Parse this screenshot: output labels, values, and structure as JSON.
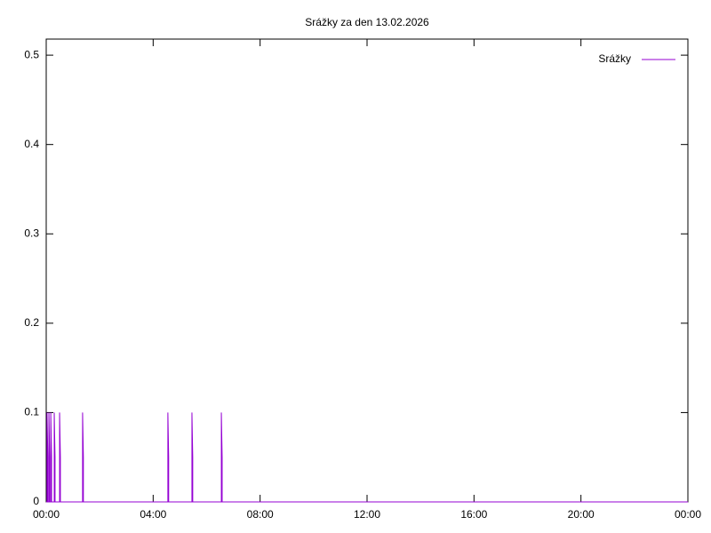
{
  "chart_data": {
    "type": "line",
    "title": "Srážky za den 13.02.2026",
    "x": [
      0,
      0.03,
      0.03,
      0.06,
      0.06,
      0.1,
      0.1,
      0.13,
      0.13,
      0.17,
      0.17,
      0.2,
      0.2,
      0.3,
      0.3,
      0.33,
      0.33,
      0.5,
      0.5,
      0.53,
      0.53,
      1.36,
      1.36,
      1.39,
      1.39,
      4.55,
      4.55,
      4.58,
      4.58,
      5.45,
      5.45,
      5.48,
      5.48,
      6.55,
      6.55,
      6.58,
      6.58,
      24
    ],
    "series": [
      {
        "name": "Srážky",
        "color": "#9400d3",
        "values": [
          0,
          0,
          0.1,
          0.05,
          0,
          0,
          0.1,
          0.05,
          0,
          0,
          0.1,
          0.05,
          0,
          0,
          0.1,
          0.05,
          0,
          0,
          0.1,
          0.05,
          0,
          0,
          0.1,
          0.05,
          0,
          0,
          0.1,
          0.05,
          0,
          0,
          0.1,
          0.05,
          0,
          0,
          0.1,
          0.05,
          0,
          0
        ]
      }
    ],
    "xlim": [
      0,
      24
    ],
    "xticks": [
      {
        "value": 0,
        "label": "00:00"
      },
      {
        "value": 4,
        "label": "04:00"
      },
      {
        "value": 8,
        "label": "08:00"
      },
      {
        "value": 12,
        "label": "12:00"
      },
      {
        "value": 16,
        "label": "16:00"
      },
      {
        "value": 20,
        "label": "20:00"
      },
      {
        "value": 24,
        "label": "00:00"
      }
    ],
    "ylim": [
      0,
      0.518
    ],
    "yticks": [
      0,
      0.1,
      0.2,
      0.3,
      0.4,
      0.5
    ],
    "legend": "top-right"
  }
}
